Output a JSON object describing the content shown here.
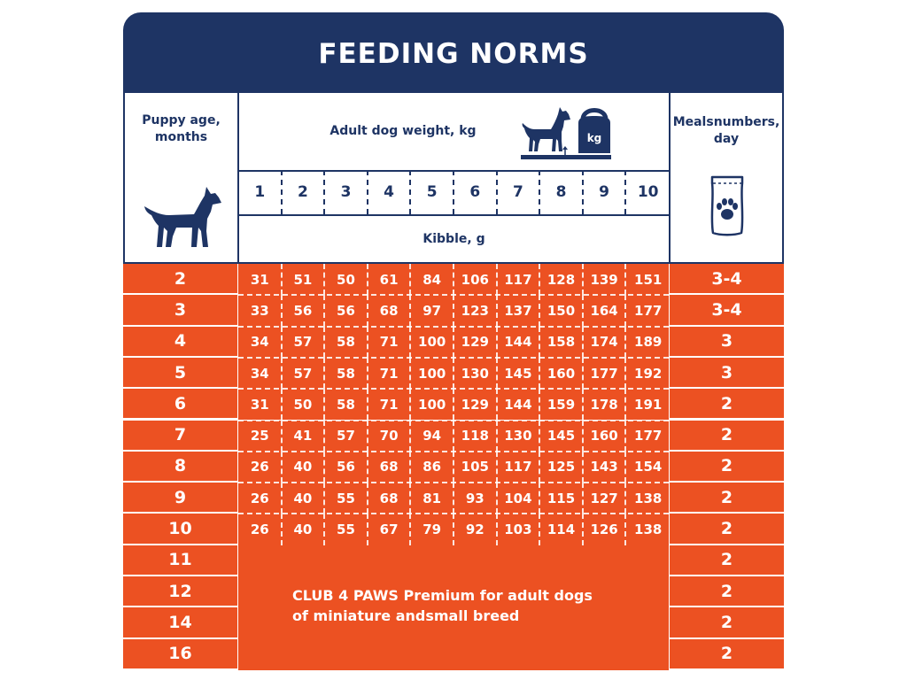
{
  "title": "FEEDING NORMS",
  "headers": {
    "age": "Puppy age,\nmonths",
    "weight": "Adult dog weight, kg",
    "kg_badge": "kg",
    "meals": "Mealsnumbers,\nday",
    "kibble": "Kibble, g"
  },
  "weights": [
    "1",
    "2",
    "3",
    "4",
    "5",
    "6",
    "7",
    "8",
    "9",
    "10"
  ],
  "rows": [
    {
      "age": "2",
      "values": [
        "31",
        "51",
        "50",
        "61",
        "84",
        "106",
        "117",
        "128",
        "139",
        "151"
      ],
      "meals": "3-4"
    },
    {
      "age": "3",
      "values": [
        "33",
        "56",
        "56",
        "68",
        "97",
        "123",
        "137",
        "150",
        "164",
        "177"
      ],
      "meals": "3-4"
    },
    {
      "age": "4",
      "values": [
        "34",
        "57",
        "58",
        "71",
        "100",
        "129",
        "144",
        "158",
        "174",
        "189"
      ],
      "meals": "3"
    },
    {
      "age": "5",
      "values": [
        "34",
        "57",
        "58",
        "71",
        "100",
        "130",
        "145",
        "160",
        "177",
        "192"
      ],
      "meals": "3"
    },
    {
      "age": "6",
      "values": [
        "31",
        "50",
        "58",
        "71",
        "100",
        "129",
        "144",
        "159",
        "178",
        "191"
      ],
      "meals": "2"
    },
    {
      "age": "7",
      "values": [
        "25",
        "41",
        "57",
        "70",
        "94",
        "118",
        "130",
        "145",
        "160",
        "177"
      ],
      "meals": "2"
    },
    {
      "age": "8",
      "values": [
        "26",
        "40",
        "56",
        "68",
        "86",
        "105",
        "117",
        "125",
        "143",
        "154"
      ],
      "meals": "2"
    },
    {
      "age": "9",
      "values": [
        "26",
        "40",
        "55",
        "68",
        "81",
        "93",
        "104",
        "115",
        "127",
        "138"
      ],
      "meals": "2"
    },
    {
      "age": "10",
      "values": [
        "26",
        "40",
        "55",
        "67",
        "79",
        "92",
        "103",
        "114",
        "126",
        "138"
      ],
      "meals": "2"
    },
    {
      "age": "11",
      "values": [],
      "meals": "2"
    },
    {
      "age": "12",
      "values": [],
      "meals": "2"
    },
    {
      "age": "14",
      "values": [],
      "meals": "2"
    },
    {
      "age": "16",
      "values": [],
      "meals": "2"
    }
  ],
  "promo": "CLUB 4 PAWS Premium for adult dogs\nof miniature andsmall breed",
  "colors": {
    "navy": "#1e3464",
    "orange": "#ec5122",
    "white": "#ffffff"
  },
  "icons": [
    "dog-icon",
    "scale-kettlebell-icon",
    "food-pouch-paw-icon"
  ]
}
